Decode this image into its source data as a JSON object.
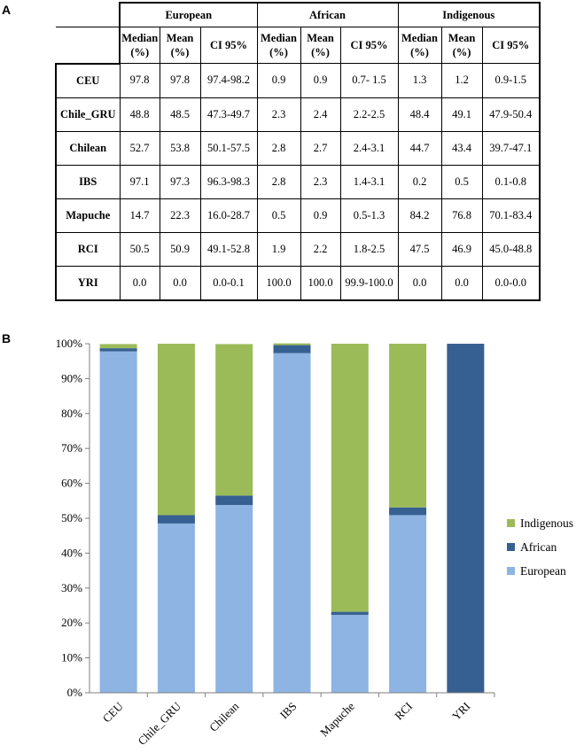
{
  "panel_a_label": "A",
  "panel_b_label": "B",
  "table": {
    "groups": [
      "European",
      "African",
      "Indigenous"
    ],
    "subheaders": [
      [
        "Median",
        "(%)"
      ],
      [
        "Mean",
        "(%)"
      ],
      [
        "CI 95%"
      ],
      [
        "Median",
        "(%)"
      ],
      [
        "Mean",
        "(%)"
      ],
      [
        "CI 95%"
      ],
      [
        "Median",
        "(%)"
      ],
      [
        "Mean",
        "(%)"
      ],
      [
        "CI 95%"
      ]
    ],
    "rows": [
      {
        "name": "CEU",
        "cells": [
          "97.8",
          "97.8",
          "97.4-98.2",
          "0.9",
          "0.9",
          "0.7- 1.5",
          "1.3",
          "1.2",
          "0.9-1.5"
        ]
      },
      {
        "name": "Chile_GRU",
        "cells": [
          "48.8",
          "48.5",
          "47.3-49.7",
          "2.3",
          "2.4",
          "2.2-2.5",
          "48.4",
          "49.1",
          "47.9-50.4"
        ]
      },
      {
        "name": "Chilean",
        "cells": [
          "52.7",
          "53.8",
          "50.1-57.5",
          "2.8",
          "2.7",
          "2.4-3.1",
          "44.7",
          "43.4",
          "39.7-47.1"
        ]
      },
      {
        "name": "IBS",
        "cells": [
          "97.1",
          "97.3",
          "96.3-98.3",
          "2.8",
          "2.3",
          "1.4-3.1",
          "0.2",
          "0.5",
          "0.1-0.8"
        ]
      },
      {
        "name": "Mapuche",
        "cells": [
          "14.7",
          "22.3",
          "16.0-28.7",
          "0.5",
          "0.9",
          "0.5-1.3",
          "84.2",
          "76.8",
          "70.1-83.4"
        ]
      },
      {
        "name": "RCI",
        "cells": [
          "50.5",
          "50.9",
          "49.1-52.8",
          "1.9",
          "2.2",
          "1.8-2.5",
          "47.5",
          "46.9",
          "45.0-48.8"
        ]
      },
      {
        "name": "YRI",
        "cells": [
          "0.0",
          "0.0",
          "0.0-0.1",
          "100.0",
          "100.0",
          "99.9-100.0",
          "0.0",
          "0.0",
          "0.0-0.0"
        ]
      }
    ]
  },
  "chart_data": {
    "type": "bar",
    "stacked": true,
    "categories": [
      "CEU",
      "Chile_GRU",
      "Chilean",
      "IBS",
      "Mapuche",
      "RCI",
      "YRI"
    ],
    "series": [
      {
        "name": "European",
        "values": [
          97.8,
          48.5,
          53.8,
          97.3,
          22.3,
          50.9,
          0.0
        ],
        "color": "#8eb4e3"
      },
      {
        "name": "African",
        "values": [
          0.9,
          2.4,
          2.7,
          2.3,
          0.9,
          2.2,
          100.0
        ],
        "color": "#376092"
      },
      {
        "name": "Indigenous",
        "values": [
          1.2,
          49.1,
          43.4,
          0.5,
          76.8,
          46.9,
          0.0
        ],
        "color": "#9bbb59"
      }
    ],
    "yticks": [
      "0%",
      "10%",
      "20%",
      "30%",
      "40%",
      "50%",
      "60%",
      "70%",
      "80%",
      "90%",
      "100%"
    ],
    "ylim": [
      0,
      100
    ],
    "legend": [
      "Indigenous",
      "African",
      "European"
    ],
    "legend_position": "right",
    "grid": false
  }
}
